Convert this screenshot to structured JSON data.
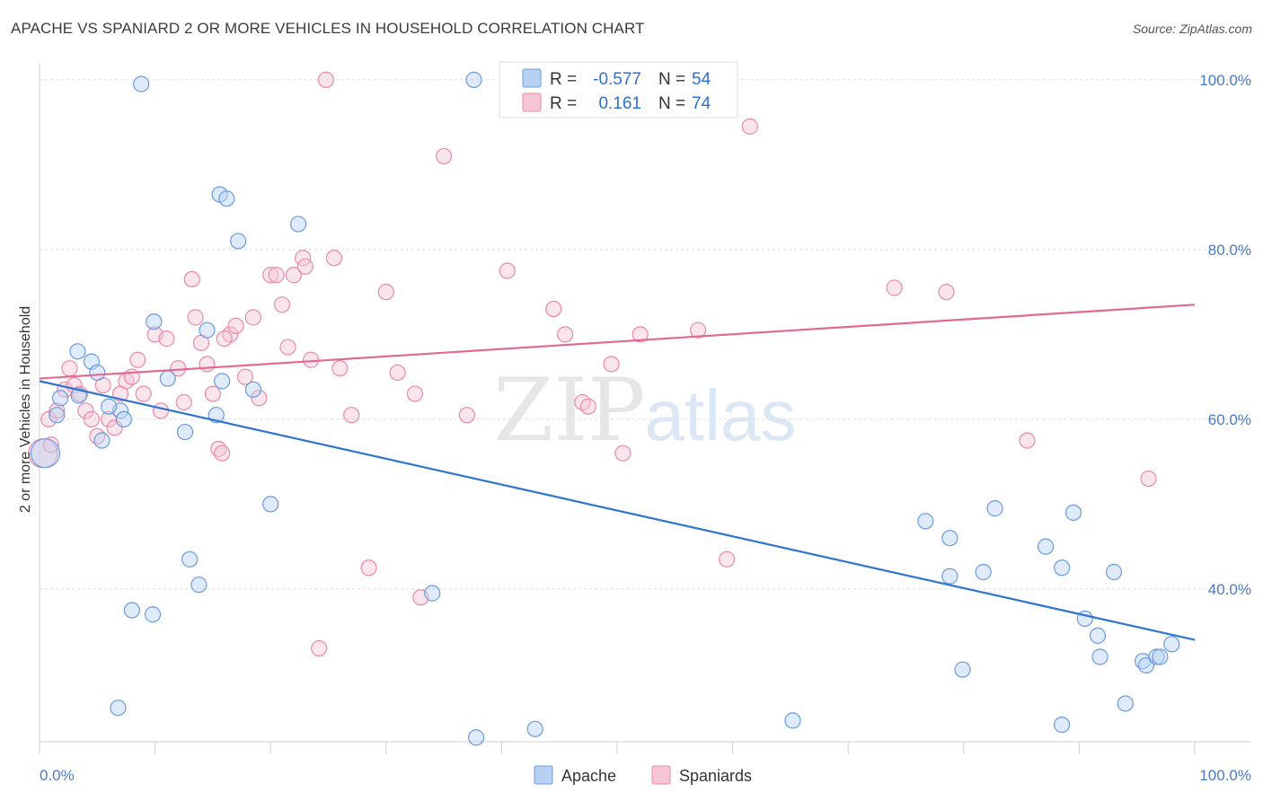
{
  "title": "APACHE VS SPANIARD 2 OR MORE VEHICLES IN HOUSEHOLD CORRELATION CHART",
  "source": "Source: ZipAtlas.com",
  "watermark": {
    "zip": "ZIP",
    "atlas": "atlas"
  },
  "colors": {
    "apache": "#6a9be0",
    "apache_fill": "#b8d0f3",
    "apache_line": "#2f74d0",
    "spaniards": "#e88aa8",
    "spaniards_fill": "#f7c6d5",
    "spaniards_line": "#e06a93",
    "value_text": "#2f6fd0",
    "grid": "#dcdcdc"
  },
  "legend": {
    "apache": {
      "r_label": "R = ",
      "r_value": "-0.577",
      "n_label": "N = ",
      "n_value": "54"
    },
    "spaniards": {
      "r_label": "R = ",
      "r_value": "0.161",
      "n_label": "N = ",
      "n_value": "74"
    }
  },
  "chart_data": {
    "type": "scatter",
    "title": "APACHE VS SPANIARD 2 OR MORE VEHICLES IN HOUSEHOLD CORRELATION CHART",
    "xlabel": "",
    "ylabel": "2 or more Vehicles in Household",
    "xlim": [
      0,
      100
    ],
    "ylim": [
      22,
      102
    ],
    "x_tick_labels": [
      "0.0%",
      "100.0%"
    ],
    "y_ticks": [
      40,
      60,
      80,
      100
    ],
    "y_tick_labels": [
      "40.0%",
      "60.0%",
      "80.0%",
      "100.0%"
    ],
    "grid": true,
    "legend_position": "top-center",
    "series": [
      {
        "name": "Apache",
        "points": [
          [
            0.5,
            56.0
          ],
          [
            1.8,
            62.5
          ],
          [
            1.5,
            60.5
          ],
          [
            3.4,
            62.8
          ],
          [
            4.5,
            66.8
          ],
          [
            5.0,
            65.5
          ],
          [
            3.3,
            68.0
          ],
          [
            7.0,
            61.0
          ],
          [
            6.0,
            61.5
          ],
          [
            7.3,
            60.0
          ],
          [
            5.4,
            57.5
          ],
          [
            8.8,
            99.5
          ],
          [
            9.8,
            37.0
          ],
          [
            8.0,
            37.5
          ],
          [
            6.8,
            26.0
          ],
          [
            9.9,
            71.5
          ],
          [
            11.1,
            64.8
          ],
          [
            12.6,
            58.5
          ],
          [
            14.5,
            70.5
          ],
          [
            13.0,
            43.5
          ],
          [
            13.8,
            40.5
          ],
          [
            15.6,
            86.5
          ],
          [
            16.2,
            86.0
          ],
          [
            15.8,
            64.5
          ],
          [
            15.3,
            60.5
          ],
          [
            17.2,
            81.0
          ],
          [
            18.5,
            63.5
          ],
          [
            20.0,
            50.0
          ],
          [
            22.4,
            83.0
          ],
          [
            37.6,
            100.0
          ],
          [
            34.0,
            39.5
          ],
          [
            37.8,
            22.5
          ],
          [
            42.9,
            23.5
          ],
          [
            65.2,
            24.5
          ],
          [
            76.7,
            48.0
          ],
          [
            78.8,
            46.0
          ],
          [
            78.8,
            41.5
          ],
          [
            81.7,
            42.0
          ],
          [
            79.9,
            30.5
          ],
          [
            82.7,
            49.5
          ],
          [
            87.1,
            45.0
          ],
          [
            88.5,
            42.5
          ],
          [
            89.5,
            49.0
          ],
          [
            90.5,
            36.5
          ],
          [
            91.6,
            34.5
          ],
          [
            91.8,
            32.0
          ],
          [
            93.0,
            42.0
          ],
          [
            94.0,
            26.5
          ],
          [
            95.5,
            31.5
          ],
          [
            95.8,
            31.0
          ],
          [
            96.7,
            32.0
          ],
          [
            97.0,
            32.0
          ],
          [
            98.0,
            33.5
          ],
          [
            88.5,
            24.0
          ]
        ],
        "trend": {
          "x": [
            0,
            100
          ],
          "y": [
            64.5,
            34.0
          ]
        }
      },
      {
        "name": "Spaniards",
        "points": [
          [
            0.3,
            56.0
          ],
          [
            0.8,
            60.0
          ],
          [
            1.5,
            61.0
          ],
          [
            2.2,
            63.5
          ],
          [
            2.6,
            66.0
          ],
          [
            3.0,
            64.0
          ],
          [
            3.5,
            63.0
          ],
          [
            4.0,
            61.0
          ],
          [
            4.5,
            60.0
          ],
          [
            5.0,
            58.0
          ],
          [
            5.5,
            64.0
          ],
          [
            6.0,
            60.0
          ],
          [
            6.5,
            59.0
          ],
          [
            7.0,
            63.0
          ],
          [
            7.5,
            64.5
          ],
          [
            8.0,
            65.0
          ],
          [
            8.5,
            67.0
          ],
          [
            9.0,
            63.0
          ],
          [
            10.0,
            70.0
          ],
          [
            10.5,
            61.0
          ],
          [
            11.0,
            69.5
          ],
          [
            12.0,
            66.0
          ],
          [
            12.5,
            62.0
          ],
          [
            13.2,
            76.5
          ],
          [
            13.5,
            72.0
          ],
          [
            14.0,
            69.0
          ],
          [
            14.5,
            66.5
          ],
          [
            15.0,
            63.0
          ],
          [
            15.5,
            56.5
          ],
          [
            15.8,
            56.0
          ],
          [
            16.5,
            70.0
          ],
          [
            17.0,
            71.0
          ],
          [
            17.8,
            65.0
          ],
          [
            18.5,
            72.0
          ],
          [
            19.0,
            62.5
          ],
          [
            20.0,
            77.0
          ],
          [
            20.5,
            77.0
          ],
          [
            21.0,
            73.5
          ],
          [
            21.5,
            68.5
          ],
          [
            22.0,
            77.0
          ],
          [
            22.8,
            79.0
          ],
          [
            23.0,
            78.0
          ],
          [
            23.5,
            67.0
          ],
          [
            24.2,
            33.0
          ],
          [
            24.8,
            100.0
          ],
          [
            25.5,
            79.0
          ],
          [
            26.0,
            66.0
          ],
          [
            27.0,
            60.5
          ],
          [
            28.5,
            42.5
          ],
          [
            30.0,
            75.0
          ],
          [
            31.0,
            65.5
          ],
          [
            32.5,
            63.0
          ],
          [
            33.0,
            39.0
          ],
          [
            35.0,
            91.0
          ],
          [
            37.0,
            60.5
          ],
          [
            40.5,
            77.5
          ],
          [
            44.5,
            73.0
          ],
          [
            45.5,
            70.0
          ],
          [
            47.0,
            62.0
          ],
          [
            47.5,
            61.5
          ],
          [
            49.5,
            66.5
          ],
          [
            50.5,
            56.0
          ],
          [
            52.0,
            70.0
          ],
          [
            57.0,
            70.5
          ],
          [
            59.5,
            43.5
          ],
          [
            61.5,
            94.5
          ],
          [
            51.5,
            100.5
          ],
          [
            55.0,
            100.0
          ],
          [
            74.0,
            75.5
          ],
          [
            78.5,
            75.0
          ],
          [
            85.5,
            57.5
          ],
          [
            96.0,
            53.0
          ],
          [
            16.0,
            69.5
          ],
          [
            1.0,
            57.0
          ]
        ],
        "trend": {
          "x": [
            0,
            100
          ],
          "y": [
            64.8,
            73.5
          ]
        }
      }
    ]
  }
}
